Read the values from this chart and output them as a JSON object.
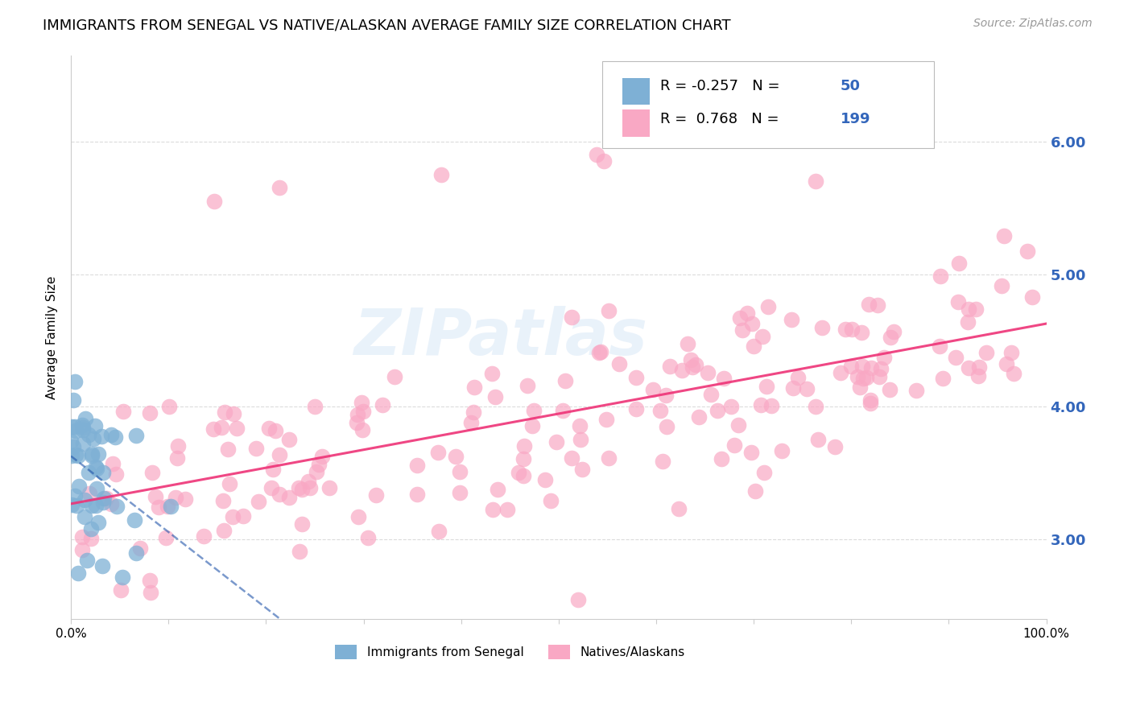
{
  "title": "IMMIGRANTS FROM SENEGAL VS NATIVE/ALASKAN AVERAGE FAMILY SIZE CORRELATION CHART",
  "source": "Source: ZipAtlas.com",
  "ylabel": "Average Family Size",
  "xlim": [
    0.0,
    100.0
  ],
  "ylim": [
    2.4,
    6.65
  ],
  "yticks": [
    3.0,
    4.0,
    5.0,
    6.0
  ],
  "xticks": [
    0.0,
    10.0,
    20.0,
    30.0,
    40.0,
    50.0,
    60.0,
    70.0,
    80.0,
    90.0,
    100.0
  ],
  "xtick_labels": [
    "0.0%",
    "",
    "",
    "",
    "",
    "",
    "",
    "",
    "",
    "",
    "100.0%"
  ],
  "blue_color": "#7EB0D5",
  "pink_color": "#F9A8C4",
  "blue_line_color": "#2255AA",
  "pink_line_color": "#EE3377",
  "legend_R_blue": "-0.257",
  "legend_N_blue": "50",
  "legend_R_pink": "0.768",
  "legend_N_pink": "199",
  "blue_n": 50,
  "pink_n": 199,
  "blue_R": -0.257,
  "pink_R": 0.768,
  "watermark": "ZIPatlas",
  "title_fontsize": 13,
  "label_fontsize": 11,
  "tick_fontsize": 11,
  "right_tick_color": "#3366BB",
  "legend_text_color": "#3366BB",
  "background_color": "#FFFFFF",
  "grid_color": "#CCCCCC",
  "grid_style": "--",
  "grid_alpha": 0.7
}
